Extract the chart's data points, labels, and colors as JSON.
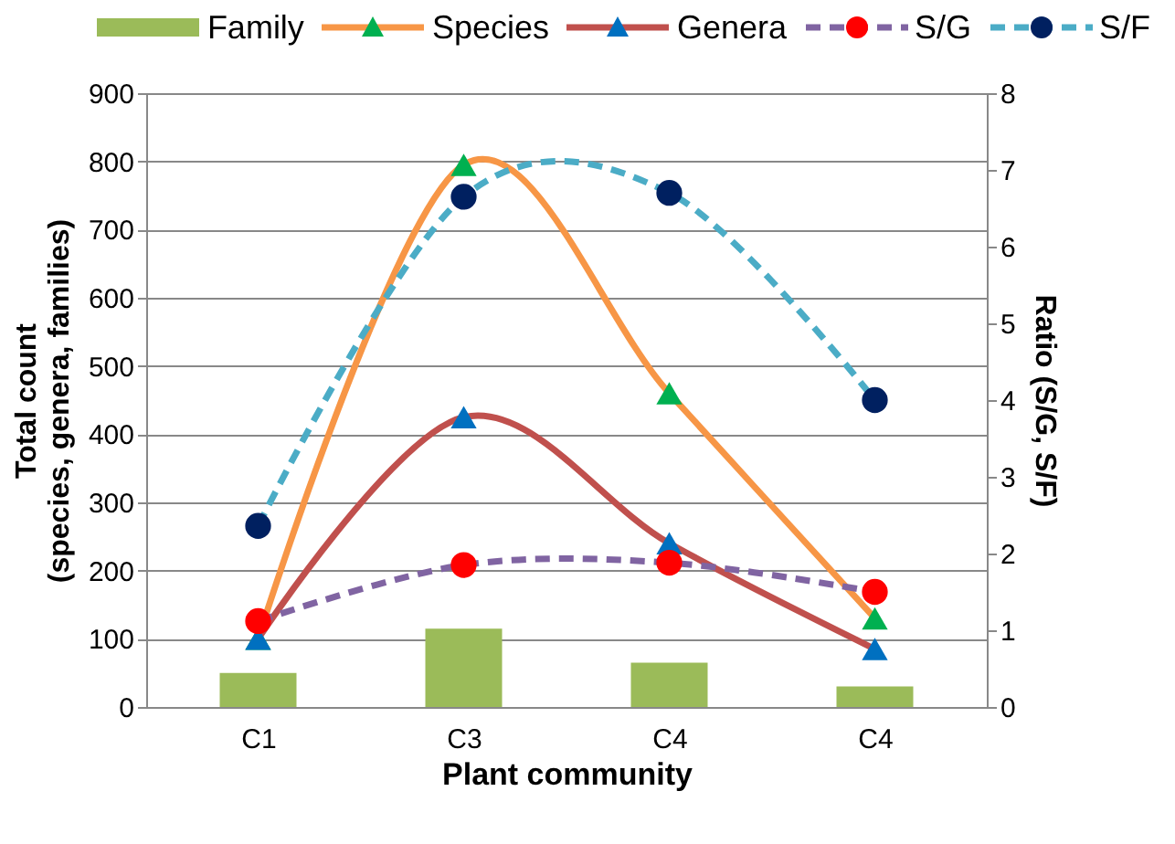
{
  "chart_data": {
    "type": "line",
    "xlabel": "Plant community",
    "ylabel": "Total count\n(species, genera, families)",
    "y2label": "Ratio (S/G, S/F)",
    "categories": [
      "C1",
      "C3",
      "C4",
      "C4"
    ],
    "ylim": [
      0,
      900
    ],
    "yticks": [
      0,
      100,
      200,
      300,
      400,
      500,
      600,
      700,
      800,
      900
    ],
    "y2lim": [
      0,
      8
    ],
    "y2ticks": [
      0,
      1,
      2,
      3,
      4,
      5,
      6,
      7,
      8
    ],
    "grid": "y",
    "legend": "top",
    "series": [
      {
        "name": "Family",
        "type": "bar",
        "color": "#9bbb59",
        "values": [
          50,
          115,
          65,
          30
        ]
      },
      {
        "name": "Species",
        "color": "#f79646",
        "colors": [
          "#00b050",
          "#00b050",
          "#00b050",
          "#00b050"
        ],
        "marker": "triangle",
        "line_style": "solid",
        "values": [
          100,
          795,
          460,
          130
        ]
      },
      {
        "name": "Genera",
        "color": "#c0504d",
        "colors": [
          "#0070c0",
          "#0070c0",
          "#0070c0",
          "#0070c0"
        ],
        "marker": "triangle",
        "line_style": "solid",
        "values": [
          100,
          425,
          240,
          85
        ]
      },
      {
        "name": "S/G",
        "axis": "y2",
        "color": "#8064a2",
        "colors": [
          "#ff0000",
          "#ff0000",
          "#ff0000",
          "#ff0000"
        ],
        "marker": "circle",
        "line_style": "dashed",
        "values": [
          1.12,
          1.85,
          1.88,
          1.5
        ]
      },
      {
        "name": "S/F",
        "axis": "y2",
        "color": "#4bacc6",
        "colors": [
          "#002060",
          "#002060",
          "#002060",
          "#002060"
        ],
        "marker": "circle",
        "line_style": "dashed",
        "values": [
          2.36,
          6.65,
          6.7,
          4.0
        ]
      }
    ]
  }
}
